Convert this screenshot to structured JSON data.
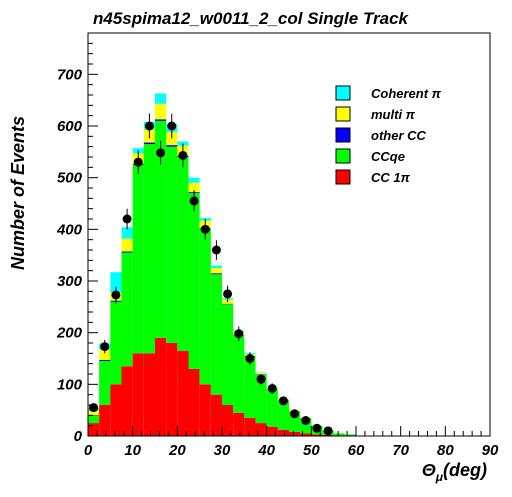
{
  "chart_data": {
    "type": "bar",
    "title": "n45spima12_w0011_2_col Single Track",
    "xlabel": {
      "symbol": "Θ",
      "subscript": "μ",
      "unit": "(deg)"
    },
    "ylabel": "Number of Events",
    "xlim": [
      0,
      90
    ],
    "ylim": [
      0,
      780
    ],
    "bin_width": 2.5,
    "x_ticks": [
      0,
      10,
      20,
      30,
      40,
      50,
      60,
      70,
      80,
      90
    ],
    "y_ticks": [
      0,
      100,
      200,
      300,
      400,
      500,
      600,
      700
    ],
    "bin_low_edges": [
      0,
      2.5,
      5,
      7.5,
      10,
      12.5,
      15,
      17.5,
      20,
      22.5,
      25,
      27.5,
      30,
      32.5,
      35,
      37.5,
      40,
      42.5,
      45,
      47.5,
      50,
      52.5,
      55,
      57.5
    ],
    "stack_order": [
      "CC 1π",
      "CCqe",
      "other CC",
      "multi π",
      "Coherent π"
    ],
    "series": [
      {
        "name": "Coherent π",
        "color": "#00ffff",
        "values": [
          5,
          12,
          40,
          22,
          10,
          15,
          20,
          15,
          8,
          10,
          5,
          5,
          3,
          2,
          2,
          1,
          1,
          0,
          0,
          0,
          0,
          0,
          0,
          0
        ]
      },
      {
        "name": "multi π",
        "color": "#ffff00",
        "values": [
          8,
          20,
          15,
          25,
          20,
          25,
          30,
          25,
          20,
          18,
          15,
          10,
          8,
          6,
          4,
          3,
          2,
          2,
          1,
          1,
          0,
          0,
          0,
          0
        ]
      },
      {
        "name": "other CC",
        "color": "#0000ff",
        "values": [
          1,
          2,
          2,
          2,
          2,
          3,
          3,
          3,
          2,
          2,
          2,
          2,
          1,
          1,
          1,
          1,
          0,
          0,
          0,
          0,
          0,
          0,
          0,
          0
        ]
      },
      {
        "name": "CCqe",
        "color": "#00ff00",
        "values": [
          15,
          85,
          160,
          220,
          365,
          405,
          420,
          380,
          375,
          340,
          300,
          233,
          195,
          150,
          119,
          93,
          73,
          58,
          40,
          30,
          17,
          9,
          4,
          3
        ]
      },
      {
        "name": "CC 1π",
        "color": "#ff0000",
        "values": [
          25,
          60,
          100,
          135,
          160,
          160,
          190,
          180,
          165,
          130,
          100,
          80,
          60,
          45,
          35,
          25,
          18,
          12,
          8,
          5,
          3,
          2,
          1,
          0
        ]
      }
    ],
    "data_points": {
      "x": [
        1.25,
        3.75,
        6.25,
        8.75,
        11.25,
        13.75,
        16.25,
        18.75,
        21.25,
        23.75,
        26.25,
        28.75,
        31.25,
        33.75,
        36.25,
        38.75,
        41.25,
        43.75,
        46.25,
        48.75,
        51.25,
        53.75
      ],
      "y": [
        55,
        173,
        273,
        420,
        530,
        600,
        548,
        600,
        543,
        455,
        400,
        360,
        275,
        198,
        150,
        110,
        92,
        68,
        43,
        30,
        15,
        10
      ],
      "err": [
        8,
        13,
        16,
        20,
        23,
        24,
        23,
        24,
        23,
        21,
        20,
        19,
        16,
        14,
        12,
        10,
        10,
        8,
        7,
        5,
        4,
        3
      ]
    },
    "legend_position": "top-right",
    "grid": false
  }
}
